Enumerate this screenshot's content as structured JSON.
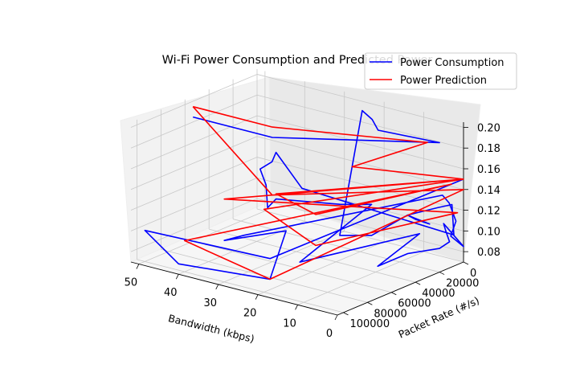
{
  "chart_data": {
    "type": "line",
    "projection": "3d",
    "title": "Wi-Fi Power Consumption and Predicted Power",
    "xlabel": "Bandwidth (kbps)",
    "ylabel": "Packet Rate (#/s)",
    "zlabel": "",
    "xlim": [
      0,
      52
    ],
    "ylim": [
      0,
      105000
    ],
    "zlim": [
      0.07,
      0.205
    ],
    "x_ticks": [
      0,
      10,
      20,
      30,
      40,
      50
    ],
    "y_ticks": [
      0,
      20000,
      40000,
      60000,
      80000,
      100000
    ],
    "z_ticks": [
      0.08,
      0.1,
      0.12,
      0.14,
      0.16,
      0.18,
      0.2
    ],
    "x_tick_labels": [
      "0",
      "10",
      "20",
      "30",
      "40",
      "50"
    ],
    "y_tick_labels": [
      "0",
      "20000",
      "40000",
      "60000",
      "80000",
      "100000"
    ],
    "z_tick_labels": [
      "0.08",
      "0.10",
      "0.12",
      "0.14",
      "0.16",
      "0.18",
      "0.20"
    ],
    "grid": true,
    "legend_position": "top-right",
    "series": [
      {
        "name": "Power Consumption",
        "color": "#0000ff",
        "points": [
          [
            50,
            60000,
            0.19
          ],
          [
            30,
            60000,
            0.19
          ],
          [
            0,
            20000,
            0.195
          ],
          [
            20,
            5000,
            0.18
          ],
          [
            23,
            0,
            0.185
          ],
          [
            24,
            5000,
            0.195
          ],
          [
            10,
            70000,
            0.12
          ],
          [
            5,
            60000,
            0.12
          ],
          [
            5,
            30000,
            0.125
          ],
          [
            6,
            20000,
            0.115
          ],
          [
            4,
            15000,
            0.11
          ],
          [
            5,
            25000,
            0.12
          ],
          [
            5,
            30000,
            0.125
          ],
          [
            5,
            5000,
            0.12
          ],
          [
            2,
            3000,
            0.125
          ],
          [
            0,
            8000,
            0.1
          ],
          [
            18,
            75000,
            0.16
          ],
          [
            20,
            90000,
            0.2
          ],
          [
            21,
            90000,
            0.19
          ],
          [
            24,
            90000,
            0.18
          ],
          [
            21,
            95000,
            0.17
          ],
          [
            20,
            97000,
            0.15
          ],
          [
            20,
            90000,
            0.155
          ],
          [
            10,
            70000,
            0.15
          ],
          [
            5,
            60000,
            0.15
          ],
          [
            14,
            90000,
            0.1
          ],
          [
            2,
            30000,
            0.11
          ],
          [
            4,
            35000,
            0.1
          ],
          [
            6,
            40000,
            0.09
          ],
          [
            8,
            45000,
            0.08
          ],
          [
            8,
            20000,
            0.08
          ],
          [
            3,
            10000,
            0.085
          ],
          [
            2,
            5000,
            0.09
          ],
          [
            3,
            5000,
            0.1
          ],
          [
            2,
            10000,
            0.11
          ],
          [
            0,
            0,
            0.085
          ],
          [
            2,
            4000,
            0.095
          ],
          [
            1,
            3000,
            0.11
          ],
          [
            3,
            2000,
            0.125
          ],
          [
            5,
            1000,
            0.13
          ],
          [
            25,
            100000,
            0.12
          ],
          [
            30,
            100000,
            0.11
          ],
          [
            22,
            75000,
            0.115
          ],
          [
            20,
            95000,
            0.08
          ],
          [
            40,
            105000,
            0.08
          ],
          [
            50,
            100000,
            0.1
          ],
          [
            20,
            95000,
            0.1
          ],
          [
            0,
            0,
            0.15
          ]
        ]
      },
      {
        "name": "Power Prediction",
        "color": "#ff0000",
        "points": [
          [
            50,
            60000,
            0.2
          ],
          [
            30,
            60000,
            0.2
          ],
          [
            0,
            30000,
            0.2
          ],
          [
            22,
            20000,
            0.15
          ],
          [
            0,
            0,
            0.15
          ],
          [
            20,
            100000,
            0.15
          ],
          [
            10,
            90000,
            0.12
          ],
          [
            0,
            5000,
            0.12
          ],
          [
            30,
            100000,
            0.15
          ],
          [
            0,
            0,
            0.15
          ],
          [
            20,
            90000,
            0.16
          ],
          [
            10,
            90000,
            0.15
          ],
          [
            0,
            10000,
            0.15
          ],
          [
            40,
            100000,
            0.1
          ],
          [
            20,
            95000,
            0.08
          ],
          [
            0,
            0,
            0.14
          ],
          [
            24,
            80000,
            0.15
          ],
          [
            50,
            60000,
            0.2
          ]
        ]
      }
    ]
  }
}
